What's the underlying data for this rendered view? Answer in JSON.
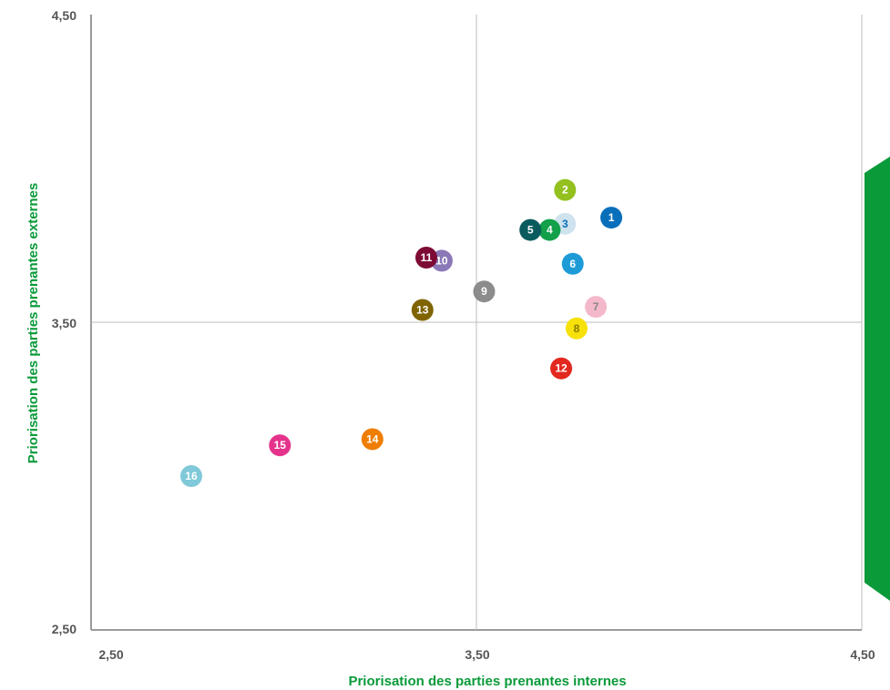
{
  "chart_data": {
    "type": "scatter",
    "xlabel": "Priorisation des parties prenantes internes",
    "ylabel": "Priorisation des parties prenantes externes",
    "xlim": [
      2.5,
      4.5
    ],
    "ylim": [
      2.5,
      4.5
    ],
    "x_ticks": [
      "2,50",
      "3,50",
      "4,50"
    ],
    "y_ticks": [
      "2,50",
      "3,50",
      "4,50"
    ],
    "reference_lines": {
      "x": 3.5,
      "y": 3.5
    },
    "grid": false,
    "points": [
      {
        "label": "1",
        "x": 3.85,
        "y": 3.84,
        "color": "#0a6fba",
        "text_color": "#ffffff"
      },
      {
        "label": "2",
        "x": 3.73,
        "y": 3.93,
        "color": "#93c01f",
        "text_color": "#ffffff"
      },
      {
        "label": "3",
        "x": 3.73,
        "y": 3.82,
        "color": "#cfe3ee",
        "text_color": "#0a6fba"
      },
      {
        "label": "4",
        "x": 3.69,
        "y": 3.8,
        "color": "#12a04a",
        "text_color": "#ffffff"
      },
      {
        "label": "5",
        "x": 3.64,
        "y": 3.8,
        "color": "#0a5b5e",
        "text_color": "#ffffff"
      },
      {
        "label": "6",
        "x": 3.75,
        "y": 3.69,
        "color": "#1e9bd7",
        "text_color": "#ffffff"
      },
      {
        "label": "7",
        "x": 3.81,
        "y": 3.55,
        "color": "#f4b8cb",
        "text_color": "#888888"
      },
      {
        "label": "8",
        "x": 3.76,
        "y": 3.48,
        "color": "#f6e10a",
        "text_color": "#8a7a00"
      },
      {
        "label": "9",
        "x": 3.52,
        "y": 3.6,
        "color": "#8c8c8c",
        "text_color": "#ffffff"
      },
      {
        "label": "10",
        "x": 3.41,
        "y": 3.7,
        "color": "#8a78b7",
        "text_color": "#ffffff"
      },
      {
        "label": "11",
        "x": 3.37,
        "y": 3.71,
        "color": "#7d0a35",
        "text_color": "#ffffff"
      },
      {
        "label": "12",
        "x": 3.72,
        "y": 3.35,
        "color": "#e2281f",
        "text_color": "#ffffff"
      },
      {
        "label": "13",
        "x": 3.36,
        "y": 3.54,
        "color": "#7f6400",
        "text_color": "#ffffff"
      },
      {
        "label": "14",
        "x": 3.23,
        "y": 3.12,
        "color": "#ef7d00",
        "text_color": "#ffffff"
      },
      {
        "label": "15",
        "x": 2.99,
        "y": 3.1,
        "color": "#e5338c",
        "text_color": "#ffffff"
      },
      {
        "label": "16",
        "x": 2.76,
        "y": 3.0,
        "color": "#7fc9d9",
        "text_color": "#ffffff"
      }
    ],
    "colors": {
      "axis": "#9a9a9a",
      "tick_text": "#555555",
      "axis_title": "#0a9a3a",
      "side_shape": "#0a9a3a"
    }
  }
}
